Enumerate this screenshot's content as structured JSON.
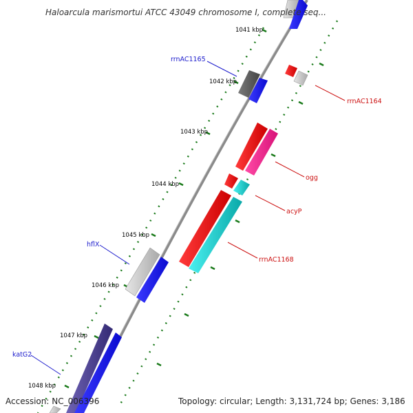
{
  "title": "Haloarcula marismortui ATCC 43049 chromosome I, complete seq...",
  "accession": "Accession: NC_006396",
  "topology": "Topology: circular; Length: 3,131,724 bp; Genes: 3,186",
  "colors": {
    "backbone": "#8a8a8a",
    "tick_green": "#1a7a1a",
    "label_blue": "#1a1acc",
    "label_red": "#cc1111",
    "gene_gray": "#c4c4c4",
    "gene_dark": "#555555",
    "gene_blue": "#1515e6",
    "gene_red": "#ee1111",
    "gene_pink": "#f01c8a",
    "gene_cyan": "#12cccc",
    "gene_navy": "#4a3f8e"
  },
  "ticks": [
    "1041 kbp",
    "1042 kbp",
    "1043 kbp",
    "1044 kbp",
    "1045 kbp",
    "1046 kbp",
    "1047 kbp",
    "1048 kbp"
  ],
  "labels": {
    "rrnAC1165": "rrnAC1165",
    "rrnAC1164": "rrnAC1164",
    "ogg": "ogg",
    "acyP": "acyP",
    "rrnAC1168": "rrnAC1168",
    "hflX": "hflX",
    "katG2": "katG2"
  }
}
